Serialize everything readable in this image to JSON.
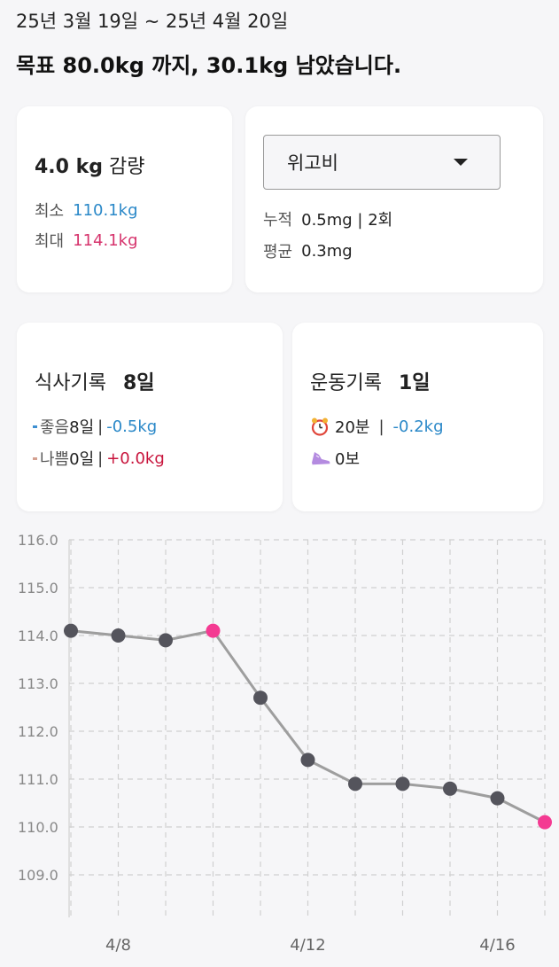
{
  "period": "25년 3월 19일 ~ 25년 4월 20일",
  "goal_text": "목표 80.0kg 까지, 30.1kg 남았습니다.",
  "weight_card": {
    "change": "4.0 kg",
    "change_suffix": "감량",
    "min_label": "최소",
    "min_value": "110.1kg",
    "max_label": "최대",
    "max_value": "114.1kg"
  },
  "medication_card": {
    "selected": "위고비",
    "total_label": "누적",
    "total_value": "0.5mg | 2회",
    "avg_label": "평균",
    "avg_value": "0.3mg"
  },
  "meal_card": {
    "title": "식사기록",
    "days": "8일",
    "good_label": "좋음",
    "good_days": "8일",
    "good_change": "-0.5kg",
    "bad_label": "나쁨",
    "bad_days": "0일",
    "bad_change": "+0.0kg",
    "separator": "|"
  },
  "exercise_card": {
    "title": "운동기록",
    "days": "1일",
    "time": "20분",
    "time_change": "-0.2kg",
    "steps": "0보",
    "separator": "|",
    "time_icon": "alarm-clock-icon",
    "steps_icon": "sneaker-icon"
  },
  "chart_data": {
    "type": "line",
    "y_ticks": [
      "116.0",
      "115.0",
      "114.0",
      "113.0",
      "112.0",
      "111.0",
      "110.0",
      "109.0"
    ],
    "ylim": [
      108.2,
      116.0
    ],
    "x_labels": [
      "4/8",
      "4/12",
      "4/16"
    ],
    "x": [
      "4/7",
      "4/8",
      "4/9",
      "4/10",
      "4/11",
      "4/12",
      "4/13",
      "4/14",
      "4/15",
      "4/16",
      "4/17"
    ],
    "values": [
      114.1,
      114.0,
      113.9,
      114.1,
      112.7,
      111.4,
      110.9,
      110.9,
      110.8,
      110.6,
      110.1
    ],
    "highlight_x": [
      "4/10",
      "4/17"
    ],
    "colors": {
      "line": "#9e9e9e",
      "point": "#54545c",
      "highlight": "#f43a92",
      "grid": "#d0d0d0"
    }
  }
}
